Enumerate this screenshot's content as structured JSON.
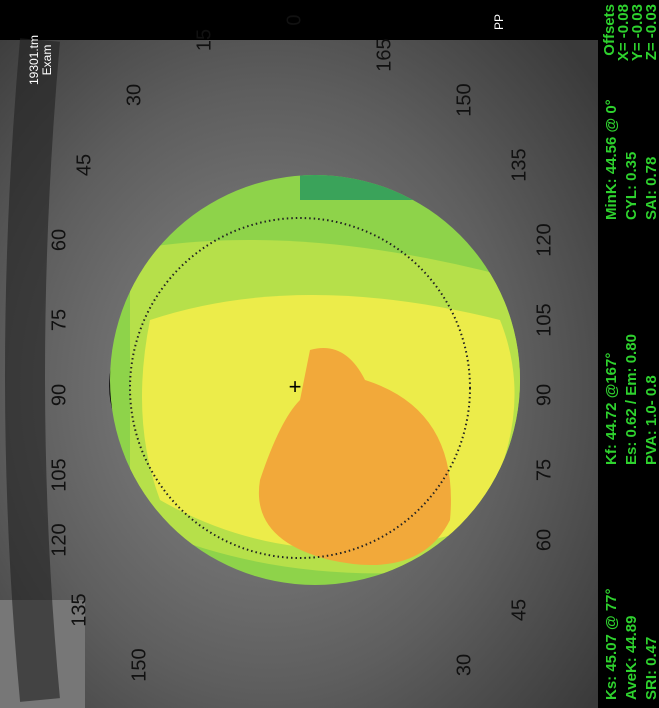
{
  "header": {
    "file": "19301.tm",
    "exam": "Exam"
  },
  "angles_left": [
    "30",
    "45",
    "60",
    "75",
    "90",
    "105",
    "120",
    "135",
    "150"
  ],
  "angles_top": [
    "15",
    "0",
    "165"
  ],
  "angles_right": [
    "150",
    "135",
    "120",
    "105",
    "90",
    "75",
    "60",
    "45",
    "30"
  ],
  "pp": "PP",
  "offsets": {
    "title": "Offsets",
    "x": "X= -0.08",
    "y": "Y= -0.03",
    "z": "Z= -0.03"
  },
  "readings": [
    [
      "Ks: 45.07 @ 77°",
      "Kf: 44.72 @167°",
      "MinK: 44.56 @ 0°"
    ],
    [
      "AveK: 44.89",
      "Es: 0.62 / Em: 0.80",
      "CYL: 0.35"
    ],
    [
      "SRI: 0.47",
      "PVA: 1.0- 0.8",
      "SAI: 0.78"
    ]
  ]
}
